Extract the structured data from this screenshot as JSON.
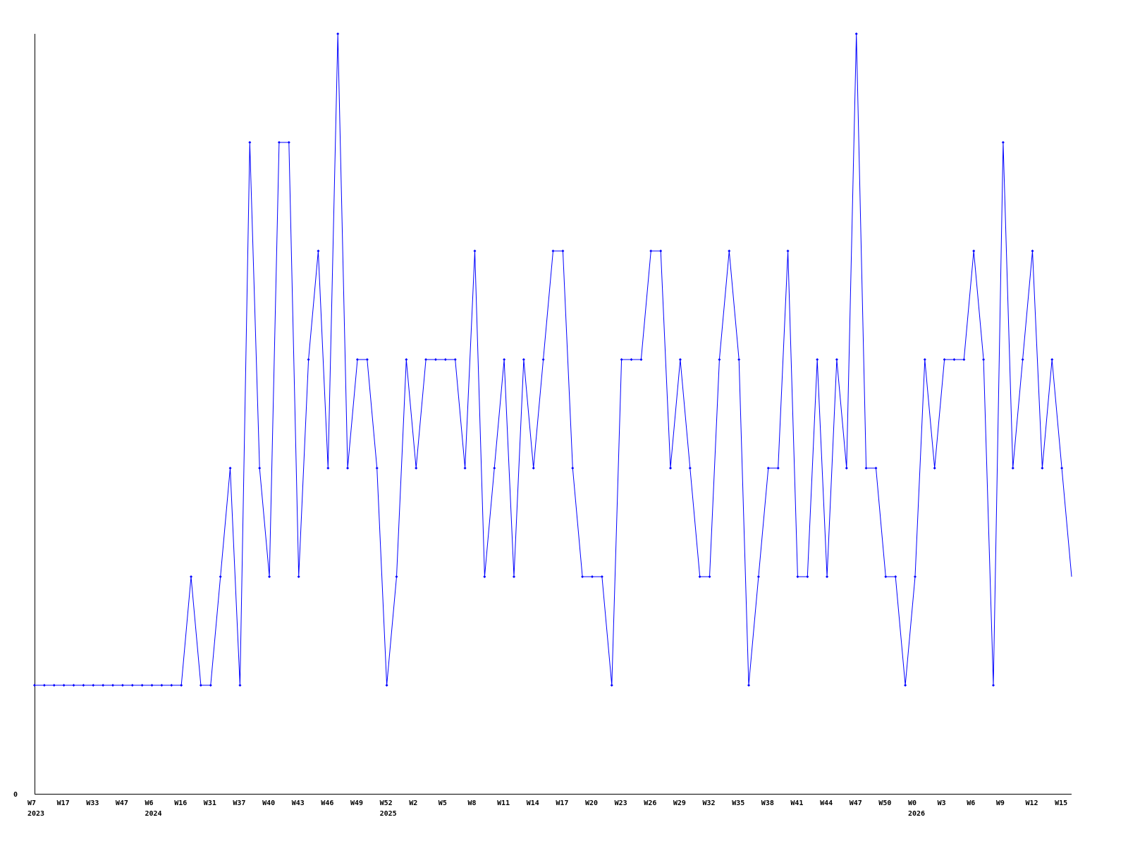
{
  "chart_data": {
    "type": "line",
    "title": "",
    "xlabel": "",
    "ylabel": "",
    "ylim": [
      0,
      7
    ],
    "y_tick_labels": [
      "0"
    ],
    "grid": false,
    "line_color": "#0000ff",
    "axis_color": "#000000",
    "x_tick_labels": [
      "W7",
      "W17",
      "W33",
      "W47",
      "W6",
      "W16",
      "W31",
      "W37",
      "W40",
      "W43",
      "W46",
      "W49",
      "W52",
      "W2",
      "W5",
      "W8",
      "W11",
      "W14",
      "W17",
      "W20",
      "W23",
      "W26",
      "W29",
      "W32",
      "W35",
      "W38",
      "W41",
      "W44",
      "W47",
      "W50",
      "W0",
      "W3",
      "W6",
      "W9",
      "W12",
      "W15"
    ],
    "year_labels": [
      {
        "label": "2023",
        "at_tick": 0
      },
      {
        "label": "2024",
        "at_tick": 4
      },
      {
        "label": "2025",
        "at_tick": 12
      },
      {
        "label": "2026",
        "at_tick": 30
      }
    ],
    "values": [
      1,
      1,
      1,
      1,
      1,
      1,
      1,
      1,
      1,
      1,
      1,
      1,
      1,
      1,
      1,
      1,
      2,
      1,
      1,
      2,
      3,
      1,
      6,
      3,
      2,
      6,
      6,
      2,
      4,
      5,
      3,
      7,
      3,
      4,
      4,
      3,
      1,
      2,
      4,
      3,
      4,
      4,
      4,
      4,
      3,
      5,
      2,
      3,
      4,
      2,
      4,
      3,
      4,
      5,
      5,
      3,
      2,
      2,
      2,
      1,
      4,
      4,
      4,
      5,
      5,
      3,
      4,
      3,
      2,
      2,
      4,
      5,
      4,
      1,
      2,
      3,
      3,
      5,
      2,
      2,
      4,
      2,
      4,
      3,
      7,
      3,
      3,
      2,
      2,
      1,
      2,
      4,
      3,
      4,
      4,
      4,
      5,
      4,
      1,
      6,
      3,
      4,
      5,
      3,
      4,
      3,
      2
    ]
  }
}
